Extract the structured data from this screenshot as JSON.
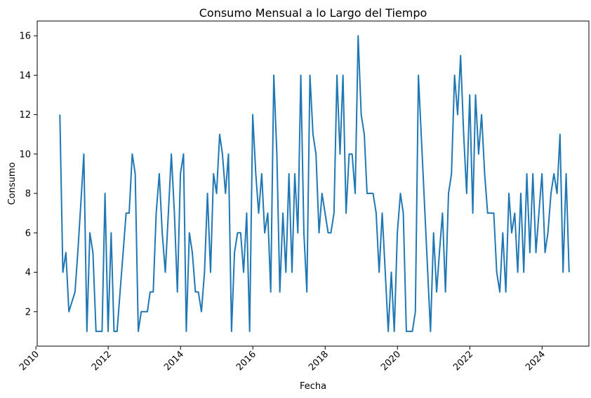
{
  "chart_data": {
    "type": "line",
    "title": "Consumo Mensual a lo Largo del Tiempo",
    "xlabel": "Fecha",
    "ylabel": "Consumo",
    "x_axis_type": "date",
    "xlim": [
      "2010-01-14",
      "2025-04-18"
    ],
    "ylim": [
      0.25,
      16.75
    ],
    "x_tick_labels": [
      "2010",
      "2012",
      "2014",
      "2016",
      "2018",
      "2020",
      "2022",
      "2024"
    ],
    "y_ticks": [
      2,
      4,
      6,
      8,
      10,
      12,
      14,
      16
    ],
    "grid": false,
    "line_color": "#1f77b4",
    "series": [
      {
        "x": [
          "2010-08-31",
          "2010-09-30",
          "2010-10-31",
          "2010-11-30",
          "2010-12-31",
          "2011-01-31",
          "2011-02-28",
          "2011-03-31",
          "2011-04-30",
          "2011-05-31",
          "2011-06-30",
          "2011-07-31",
          "2011-08-31",
          "2011-09-30",
          "2011-10-31",
          "2011-11-30",
          "2011-12-31",
          "2012-01-31",
          "2012-02-29",
          "2012-03-31",
          "2012-04-30",
          "2012-05-31",
          "2012-06-30",
          "2012-07-31",
          "2012-08-31",
          "2012-09-30",
          "2012-10-31",
          "2012-11-30",
          "2012-12-31",
          "2013-01-31",
          "2013-02-28",
          "2013-03-31",
          "2013-04-30",
          "2013-05-31",
          "2013-06-30",
          "2013-07-31",
          "2013-08-31",
          "2013-09-30",
          "2013-10-31",
          "2013-11-30",
          "2013-12-31",
          "2014-01-31",
          "2014-02-28",
          "2014-03-31",
          "2014-04-30",
          "2014-05-31",
          "2014-06-30",
          "2014-07-31",
          "2014-08-31",
          "2014-09-30",
          "2014-10-31",
          "2014-11-30",
          "2014-12-31",
          "2015-01-31",
          "2015-02-28",
          "2015-03-31",
          "2015-04-30",
          "2015-05-31",
          "2015-06-30",
          "2015-07-31",
          "2015-08-31",
          "2015-09-30",
          "2015-10-31",
          "2015-11-30",
          "2015-12-31",
          "2016-01-31",
          "2016-02-29",
          "2016-03-31",
          "2016-04-30",
          "2016-05-31",
          "2016-06-30",
          "2016-07-31",
          "2016-08-31",
          "2016-09-30",
          "2016-10-31",
          "2016-11-30",
          "2016-12-31",
          "2017-01-31",
          "2017-02-28",
          "2017-03-31",
          "2017-04-30",
          "2017-05-31",
          "2017-06-30",
          "2017-07-31",
          "2017-08-31",
          "2017-09-30",
          "2017-10-31",
          "2017-11-30",
          "2017-12-31",
          "2018-01-31",
          "2018-02-28",
          "2018-03-31",
          "2018-04-30",
          "2018-05-31",
          "2018-06-30",
          "2018-07-31",
          "2018-08-31",
          "2018-09-30",
          "2018-10-31",
          "2018-11-30",
          "2018-12-31",
          "2019-01-31",
          "2019-02-28",
          "2019-03-31",
          "2019-04-30",
          "2019-05-31",
          "2019-06-30",
          "2019-07-31",
          "2019-08-31",
          "2019-09-30",
          "2019-10-31",
          "2019-11-30",
          "2019-12-31",
          "2020-01-31",
          "2020-02-29",
          "2020-03-31",
          "2020-04-30",
          "2020-05-31",
          "2020-06-30",
          "2020-07-31",
          "2020-11-30",
          "2020-12-31",
          "2021-01-31",
          "2021-02-28",
          "2021-03-31",
          "2021-04-30",
          "2021-05-31",
          "2021-06-30",
          "2021-07-31",
          "2021-08-31",
          "2021-09-30",
          "2021-10-31",
          "2021-11-30",
          "2021-12-31",
          "2022-01-31",
          "2022-02-28",
          "2022-03-31",
          "2022-04-30",
          "2022-05-31",
          "2022-06-30",
          "2022-07-31",
          "2022-08-31",
          "2022-09-30",
          "2022-10-31",
          "2022-11-30",
          "2022-12-31",
          "2023-01-31",
          "2023-02-28",
          "2023-03-31",
          "2023-04-30",
          "2023-05-31",
          "2023-06-30",
          "2023-07-31",
          "2023-08-31",
          "2023-09-30",
          "2023-10-31",
          "2023-11-30",
          "2023-12-31",
          "2024-01-31",
          "2024-02-29",
          "2024-03-31",
          "2024-04-30",
          "2024-05-31",
          "2024-06-30",
          "2024-07-31",
          "2024-08-31",
          "2024-09-30"
        ],
        "y": [
          12,
          4,
          5,
          2,
          2.5,
          3,
          5,
          7.5,
          10,
          1,
          6,
          5,
          1,
          1,
          1,
          8,
          1,
          6,
          1,
          1,
          3,
          5,
          7,
          7,
          10,
          9,
          1,
          2,
          2,
          2,
          3,
          3,
          7,
          9,
          6,
          4,
          7,
          10,
          7,
          3,
          9,
          10,
          1,
          6,
          5,
          3,
          3,
          2,
          4,
          8,
          4,
          9,
          8,
          11,
          10,
          8,
          10,
          1,
          5,
          6,
          6,
          4,
          7,
          1,
          12,
          9,
          7,
          9,
          6,
          7,
          3,
          14,
          10,
          3,
          7,
          4,
          9,
          4,
          9,
          6,
          14,
          6,
          3,
          14,
          11,
          10,
          6,
          8,
          7,
          6,
          6,
          7,
          14,
          10,
          14,
          7,
          10,
          10,
          8,
          16,
          12,
          11,
          8,
          8,
          8,
          7,
          4,
          7,
          4,
          1,
          4,
          1,
          6,
          8,
          7,
          1,
          1,
          1,
          2,
          14,
          1,
          6,
          3,
          5,
          7,
          3,
          8,
          9,
          14,
          12,
          15,
          11,
          8,
          13,
          7,
          13,
          10,
          12,
          9,
          7,
          7,
          7,
          4,
          3,
          6,
          3,
          8,
          6,
          7,
          4,
          8,
          4,
          9,
          5,
          9,
          5,
          7,
          9,
          5,
          6,
          8,
          9,
          8,
          11,
          4,
          9,
          4
        ]
      }
    ]
  }
}
